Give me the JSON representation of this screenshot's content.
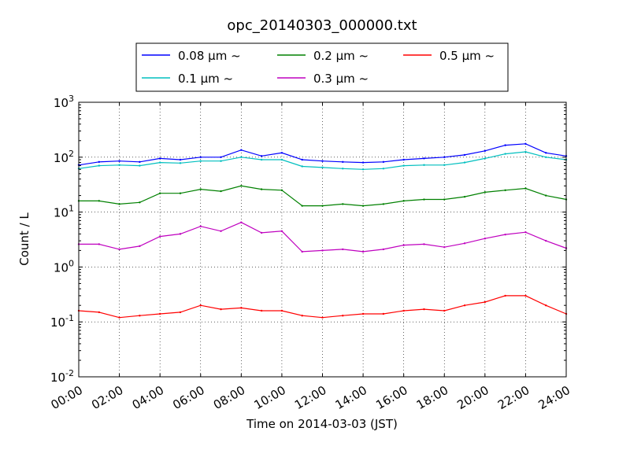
{
  "chart_data": {
    "type": "line",
    "title": "opc_20140303_000000.txt",
    "xlabel": "Time on 2014-03-03 (JST)",
    "ylabel": "Count / L",
    "x_range_hours": [
      0,
      24
    ],
    "yscale": "log",
    "ylim": [
      0.01,
      1000
    ],
    "grid": true,
    "legend_position": "top-center",
    "x_ticks": [
      "00:00",
      "02:00",
      "04:00",
      "06:00",
      "08:00",
      "10:00",
      "12:00",
      "14:00",
      "16:00",
      "18:00",
      "20:00",
      "22:00",
      "24:00"
    ],
    "y_ticks": [
      {
        "base": "10",
        "exp": "-2"
      },
      {
        "base": "10",
        "exp": "-1"
      },
      {
        "base": "10",
        "exp": "0"
      },
      {
        "base": "10",
        "exp": "1"
      },
      {
        "base": "10",
        "exp": "2"
      },
      {
        "base": "10",
        "exp": "3"
      }
    ],
    "x": [
      "00:00",
      "01:00",
      "02:00",
      "03:00",
      "04:00",
      "05:00",
      "06:00",
      "07:00",
      "08:00",
      "09:00",
      "10:00",
      "11:00",
      "12:00",
      "13:00",
      "14:00",
      "15:00",
      "16:00",
      "17:00",
      "18:00",
      "19:00",
      "20:00",
      "21:00",
      "22:00",
      "23:00",
      "24:00"
    ],
    "series": [
      {
        "name": "0.08 μm ~",
        "color": "#0000ff",
        "values": [
          72,
          82,
          85,
          82,
          95,
          90,
          100,
          100,
          135,
          105,
          120,
          90,
          85,
          82,
          80,
          82,
          90,
          95,
          100,
          110,
          130,
          165,
          175,
          120,
          105
        ]
      },
      {
        "name": "0.1 μm ~",
        "color": "#00bfbf",
        "values": [
          62,
          70,
          72,
          70,
          80,
          78,
          85,
          85,
          100,
          90,
          90,
          68,
          65,
          62,
          60,
          62,
          70,
          72,
          72,
          80,
          95,
          115,
          125,
          100,
          90
        ]
      },
      {
        "name": "0.2 μm ~",
        "color": "#008000",
        "values": [
          16,
          16,
          14,
          15,
          22,
          22,
          26,
          24,
          30,
          26,
          25,
          13,
          13,
          14,
          13,
          14,
          16,
          17,
          17,
          19,
          23,
          25,
          27,
          20,
          17
        ]
      },
      {
        "name": "0.3 μm ~",
        "color": "#bf00bf",
        "values": [
          2.6,
          2.6,
          2.1,
          2.4,
          3.6,
          4.0,
          5.5,
          4.5,
          6.5,
          4.2,
          4.5,
          1.9,
          2.0,
          2.1,
          1.9,
          2.1,
          2.5,
          2.6,
          2.3,
          2.7,
          3.3,
          3.9,
          4.3,
          3.0,
          2.2
        ]
      },
      {
        "name": "0.5 μm ~",
        "color": "#ff0000",
        "values": [
          0.16,
          0.15,
          0.12,
          0.13,
          0.14,
          0.15,
          0.2,
          0.17,
          0.18,
          0.16,
          0.16,
          0.13,
          0.12,
          0.13,
          0.14,
          0.14,
          0.16,
          0.17,
          0.16,
          0.2,
          0.23,
          0.3,
          0.3,
          0.2,
          0.14
        ]
      }
    ]
  }
}
